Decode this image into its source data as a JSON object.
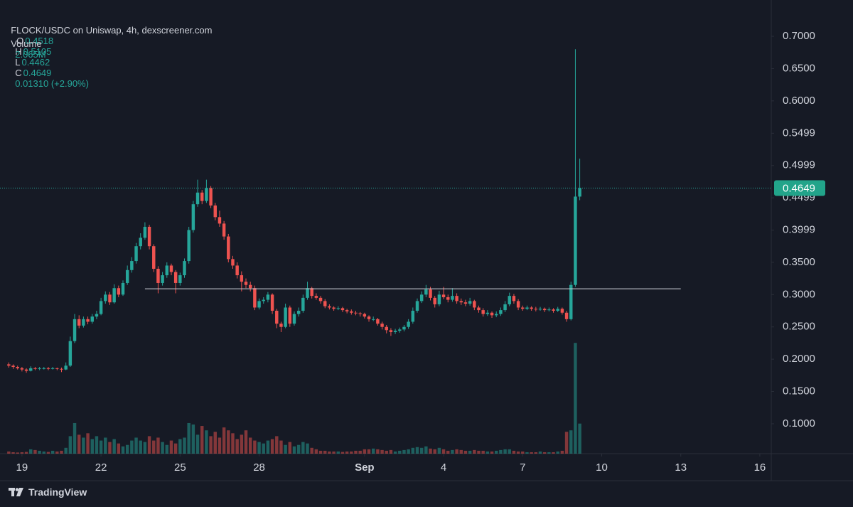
{
  "chart_data": {
    "type": "candlestick",
    "header": {
      "symbol": "FLOCK/USDC on Uniswap, 4h, dexscreener.com",
      "o_label": "O",
      "open": "0.4518",
      "h_label": "H",
      "high": "0.5105",
      "l_label": "L",
      "low": "0.4462",
      "c_label": "C",
      "close": "0.4649",
      "change": "0.01310 (+2.90%)",
      "volume_label": "Volume",
      "volume": "2.065M"
    },
    "brand": "TradingView",
    "up_color": "#26a69a",
    "down_color": "#ef5350",
    "xlim": [
      -2,
      173.6
    ],
    "xticks": [
      {
        "value": 3,
        "label": "19"
      },
      {
        "value": 21,
        "label": "22"
      },
      {
        "value": 39,
        "label": "25"
      },
      {
        "value": 57,
        "label": "28"
      },
      {
        "value": 81,
        "label": "Sep"
      },
      {
        "value": 99,
        "label": "4"
      },
      {
        "value": 117,
        "label": "7"
      },
      {
        "value": 135,
        "label": "10"
      },
      {
        "value": 153,
        "label": "13"
      },
      {
        "value": 171,
        "label": "16"
      }
    ],
    "ylim": [
      0.0537,
      0.7562
    ],
    "yticks": [
      {
        "value": 0.1,
        "label": "0.1000"
      },
      {
        "value": 0.15,
        "label": "0.1500"
      },
      {
        "value": 0.2,
        "label": "0.2000"
      },
      {
        "value": 0.25,
        "label": "0.2500"
      },
      {
        "value": 0.3,
        "label": "0.3000"
      },
      {
        "value": 0.35,
        "label": "0.3500"
      },
      {
        "value": 0.3999,
        "label": "0.3999"
      },
      {
        "value": 0.4499,
        "label": "0.4499"
      },
      {
        "value": 0.4999,
        "label": "0.4999"
      },
      {
        "value": 0.5499,
        "label": "0.5499"
      },
      {
        "value": 0.6,
        "label": "0.6000"
      },
      {
        "value": 0.65,
        "label": "0.6500"
      },
      {
        "value": 0.7,
        "label": "0.7000"
      }
    ],
    "volume_lim": [
      0,
      10
    ],
    "trend_line": {
      "y": 0.309,
      "x": [
        31,
        153
      ]
    },
    "candles": [
      [
        0.192,
        0.195,
        0.187,
        0.19
      ],
      [
        0.19,
        0.192,
        0.185,
        0.188
      ],
      [
        0.188,
        0.19,
        0.184,
        0.186
      ],
      [
        0.186,
        0.188,
        0.181,
        0.184
      ],
      [
        0.184,
        0.186,
        0.179,
        0.182
      ],
      [
        0.182,
        0.189,
        0.181,
        0.186
      ],
      [
        0.186,
        0.188,
        0.183,
        0.185
      ],
      [
        0.185,
        0.188,
        0.183,
        0.186
      ],
      [
        0.186,
        0.188,
        0.184,
        0.186
      ],
      [
        0.186,
        0.188,
        0.183,
        0.185
      ],
      [
        0.185,
        0.188,
        0.184,
        0.186
      ],
      [
        0.186,
        0.187,
        0.183,
        0.185
      ],
      [
        0.185,
        0.187,
        0.18,
        0.184
      ],
      [
        0.184,
        0.195,
        0.183,
        0.19
      ],
      [
        0.19,
        0.235,
        0.188,
        0.228
      ],
      [
        0.228,
        0.27,
        0.225,
        0.262
      ],
      [
        0.262,
        0.268,
        0.248,
        0.252
      ],
      [
        0.252,
        0.266,
        0.249,
        0.262
      ],
      [
        0.262,
        0.266,
        0.254,
        0.258
      ],
      [
        0.258,
        0.27,
        0.255,
        0.266
      ],
      [
        0.266,
        0.275,
        0.262,
        0.27
      ],
      [
        0.27,
        0.295,
        0.268,
        0.29
      ],
      [
        0.29,
        0.305,
        0.286,
        0.3
      ],
      [
        0.3,
        0.304,
        0.284,
        0.288
      ],
      [
        0.288,
        0.316,
        0.286,
        0.31
      ],
      [
        0.31,
        0.314,
        0.296,
        0.3
      ],
      [
        0.3,
        0.322,
        0.298,
        0.318
      ],
      [
        0.318,
        0.345,
        0.315,
        0.338
      ],
      [
        0.338,
        0.358,
        0.334,
        0.352
      ],
      [
        0.352,
        0.38,
        0.348,
        0.375
      ],
      [
        0.375,
        0.395,
        0.37,
        0.388
      ],
      [
        0.388,
        0.412,
        0.385,
        0.405
      ],
      [
        0.405,
        0.408,
        0.37,
        0.375
      ],
      [
        0.375,
        0.378,
        0.335,
        0.34
      ],
      [
        0.34,
        0.344,
        0.302,
        0.318
      ],
      [
        0.318,
        0.335,
        0.314,
        0.33
      ],
      [
        0.33,
        0.35,
        0.326,
        0.345
      ],
      [
        0.345,
        0.348,
        0.33,
        0.335
      ],
      [
        0.335,
        0.338,
        0.302,
        0.318
      ],
      [
        0.318,
        0.334,
        0.314,
        0.33
      ],
      [
        0.33,
        0.356,
        0.326,
        0.352
      ],
      [
        0.352,
        0.405,
        0.348,
        0.4
      ],
      [
        0.4,
        0.445,
        0.396,
        0.44
      ],
      [
        0.44,
        0.478,
        0.436,
        0.458
      ],
      [
        0.458,
        0.462,
        0.44,
        0.445
      ],
      [
        0.445,
        0.478,
        0.442,
        0.465
      ],
      [
        0.465,
        0.468,
        0.434,
        0.438
      ],
      [
        0.438,
        0.442,
        0.415,
        0.42
      ],
      [
        0.42,
        0.43,
        0.405,
        0.41
      ],
      [
        0.41,
        0.414,
        0.385,
        0.39
      ],
      [
        0.39,
        0.394,
        0.35,
        0.355
      ],
      [
        0.355,
        0.36,
        0.34,
        0.345
      ],
      [
        0.345,
        0.35,
        0.325,
        0.33
      ],
      [
        0.33,
        0.336,
        0.305,
        0.32
      ],
      [
        0.32,
        0.325,
        0.31,
        0.315
      ],
      [
        0.315,
        0.32,
        0.305,
        0.31
      ],
      [
        0.31,
        0.314,
        0.276,
        0.28
      ],
      [
        0.28,
        0.294,
        0.277,
        0.29
      ],
      [
        0.29,
        0.296,
        0.286,
        0.292
      ],
      [
        0.292,
        0.304,
        0.288,
        0.3
      ],
      [
        0.3,
        0.302,
        0.27,
        0.275
      ],
      [
        0.275,
        0.278,
        0.248,
        0.255
      ],
      [
        0.255,
        0.258,
        0.242,
        0.25
      ],
      [
        0.25,
        0.286,
        0.248,
        0.28
      ],
      [
        0.28,
        0.283,
        0.25,
        0.255
      ],
      [
        0.255,
        0.274,
        0.252,
        0.27
      ],
      [
        0.27,
        0.28,
        0.266,
        0.275
      ],
      [
        0.275,
        0.3,
        0.272,
        0.295
      ],
      [
        0.295,
        0.32,
        0.292,
        0.31
      ],
      [
        0.31,
        0.312,
        0.294,
        0.298
      ],
      [
        0.298,
        0.302,
        0.292,
        0.295
      ],
      [
        0.295,
        0.298,
        0.286,
        0.29
      ],
      [
        0.29,
        0.293,
        0.279,
        0.282
      ],
      [
        0.282,
        0.285,
        0.277,
        0.28
      ],
      [
        0.28,
        0.282,
        0.275,
        0.278
      ],
      [
        0.278,
        0.282,
        0.276,
        0.279
      ],
      [
        0.279,
        0.281,
        0.273,
        0.276
      ],
      [
        0.276,
        0.278,
        0.271,
        0.274
      ],
      [
        0.274,
        0.277,
        0.269,
        0.272
      ],
      [
        0.272,
        0.275,
        0.268,
        0.271
      ],
      [
        0.271,
        0.273,
        0.266,
        0.27
      ],
      [
        0.27,
        0.272,
        0.263,
        0.266
      ],
      [
        0.266,
        0.268,
        0.258,
        0.262
      ],
      [
        0.262,
        0.266,
        0.259,
        0.262
      ],
      [
        0.262,
        0.264,
        0.252,
        0.255
      ],
      [
        0.255,
        0.258,
        0.246,
        0.25
      ],
      [
        0.25,
        0.253,
        0.24,
        0.245
      ],
      [
        0.245,
        0.248,
        0.236,
        0.242
      ],
      [
        0.242,
        0.247,
        0.239,
        0.244
      ],
      [
        0.244,
        0.249,
        0.241,
        0.246
      ],
      [
        0.246,
        0.253,
        0.243,
        0.25
      ],
      [
        0.25,
        0.262,
        0.247,
        0.258
      ],
      [
        0.258,
        0.28,
        0.255,
        0.275
      ],
      [
        0.275,
        0.294,
        0.272,
        0.29
      ],
      [
        0.29,
        0.305,
        0.287,
        0.3
      ],
      [
        0.3,
        0.315,
        0.296,
        0.308
      ],
      [
        0.308,
        0.312,
        0.291,
        0.295
      ],
      [
        0.295,
        0.298,
        0.28,
        0.285
      ],
      [
        0.285,
        0.306,
        0.282,
        0.3
      ],
      [
        0.3,
        0.312,
        0.293,
        0.296
      ],
      [
        0.296,
        0.3,
        0.288,
        0.292
      ],
      [
        0.292,
        0.31,
        0.289,
        0.298
      ],
      [
        0.298,
        0.302,
        0.286,
        0.29
      ],
      [
        0.29,
        0.294,
        0.284,
        0.288
      ],
      [
        0.288,
        0.292,
        0.282,
        0.286
      ],
      [
        0.286,
        0.295,
        0.283,
        0.29
      ],
      [
        0.29,
        0.292,
        0.276,
        0.28
      ],
      [
        0.28,
        0.283,
        0.272,
        0.276
      ],
      [
        0.276,
        0.279,
        0.266,
        0.27
      ],
      [
        0.27,
        0.276,
        0.267,
        0.272
      ],
      [
        0.272,
        0.274,
        0.264,
        0.268
      ],
      [
        0.268,
        0.274,
        0.265,
        0.27
      ],
      [
        0.27,
        0.28,
        0.267,
        0.276
      ],
      [
        0.276,
        0.29,
        0.273,
        0.285
      ],
      [
        0.285,
        0.303,
        0.282,
        0.298
      ],
      [
        0.298,
        0.301,
        0.286,
        0.29
      ],
      [
        0.29,
        0.293,
        0.276,
        0.28
      ],
      [
        0.28,
        0.283,
        0.275,
        0.278
      ],
      [
        0.278,
        0.283,
        0.276,
        0.28
      ],
      [
        0.28,
        0.282,
        0.275,
        0.278
      ],
      [
        0.278,
        0.281,
        0.274,
        0.277
      ],
      [
        0.277,
        0.281,
        0.275,
        0.278
      ],
      [
        0.278,
        0.28,
        0.273,
        0.276
      ],
      [
        0.276,
        0.28,
        0.274,
        0.277
      ],
      [
        0.277,
        0.279,
        0.272,
        0.275
      ],
      [
        0.275,
        0.281,
        0.273,
        0.278
      ],
      [
        0.278,
        0.28,
        0.269,
        0.272
      ],
      [
        0.272,
        0.275,
        0.258,
        0.262
      ],
      [
        0.262,
        0.32,
        0.26,
        0.315
      ],
      [
        0.315,
        0.68,
        0.312,
        0.4518
      ],
      [
        0.4518,
        0.5105,
        0.4462,
        0.4649
      ]
    ],
    "volume": [
      0.15,
      0.1,
      0.08,
      0.1,
      0.12,
      0.3,
      0.25,
      0.2,
      0.15,
      0.12,
      0.2,
      0.15,
      0.2,
      0.4,
      1.2,
      2.1,
      1.3,
      1.1,
      1.4,
      1.0,
      1.2,
      0.9,
      1.1,
      0.8,
      1.0,
      0.7,
      0.5,
      0.6,
      0.9,
      1.1,
      0.9,
      0.8,
      1.2,
      0.9,
      1.1,
      0.8,
      0.6,
      0.9,
      0.7,
      1.0,
      1.1,
      2.1,
      2.0,
      1.3,
      1.9,
      1.6,
      1.2,
      1.5,
      1.1,
      1.8,
      1.6,
      1.4,
      1.0,
      1.3,
      1.6,
      1.1,
      0.9,
      0.8,
      0.7,
      0.9,
      1.0,
      1.2,
      0.9,
      0.6,
      0.8,
      0.5,
      0.6,
      0.8,
      0.7,
      0.4,
      0.3,
      0.2,
      0.2,
      0.15,
      0.15,
      0.15,
      0.12,
      0.15,
      0.15,
      0.2,
      0.2,
      0.3,
      0.3,
      0.35,
      0.3,
      0.25,
      0.2,
      0.25,
      0.15,
      0.2,
      0.25,
      0.3,
      0.4,
      0.45,
      0.4,
      0.5,
      0.35,
      0.3,
      0.4,
      0.3,
      0.2,
      0.25,
      0.3,
      0.25,
      0.2,
      0.2,
      0.25,
      0.2,
      0.2,
      0.15,
      0.15,
      0.2,
      0.25,
      0.3,
      0.3,
      0.2,
      0.15,
      0.15,
      0.1,
      0.1,
      0.1,
      0.15,
      0.1,
      0.1,
      0.1,
      0.15,
      0.2,
      1.5,
      1.6,
      7.6,
      2.065
    ]
  }
}
